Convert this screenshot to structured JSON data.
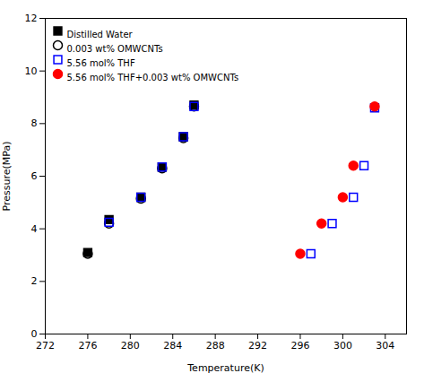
{
  "chart_data": {
    "type": "scatter",
    "xlabel": "Temperature(K)",
    "ylabel": "Pressure(MPa)",
    "series": [
      {
        "name": "Distilled Water",
        "color": "black",
        "marker": "square",
        "x": [
          276,
          278,
          281,
          283,
          285,
          286
        ],
        "values": [
          3.1,
          4.35,
          5.2,
          6.35,
          7.5,
          8.7
        ]
      },
      {
        "name": "0.003 wt% OMWCNTs",
        "color": "black",
        "marker": "circle-open",
        "x": [
          276,
          278,
          281,
          283,
          285,
          286
        ],
        "values": [
          3.05,
          4.2,
          5.15,
          6.3,
          7.45,
          8.65
        ]
      },
      {
        "name": "5.56 mol% THF",
        "color": "blue",
        "marker": "square-open",
        "x": [
          278,
          281,
          283,
          285,
          286,
          297,
          299,
          301,
          302,
          303
        ],
        "values": [
          4.25,
          5.2,
          6.35,
          7.5,
          8.65,
          3.05,
          4.2,
          5.2,
          6.4,
          8.6
        ]
      },
      {
        "name": "5.56 mol% THF+0.003 wt% OMWCNTs",
        "color": "red",
        "marker": "circle",
        "x": [
          296,
          298,
          300,
          301,
          303
        ],
        "values": [
          3.05,
          4.2,
          5.2,
          6.4,
          8.65
        ]
      }
    ],
    "xlim": [
      272,
      306
    ],
    "ylim": [
      0,
      12
    ],
    "xticks": [
      272,
      276,
      280,
      284,
      288,
      292,
      296,
      300,
      304
    ],
    "yticks": [
      0,
      2,
      4,
      6,
      8,
      10,
      12
    ],
    "grid": false,
    "legend": "upper left"
  }
}
